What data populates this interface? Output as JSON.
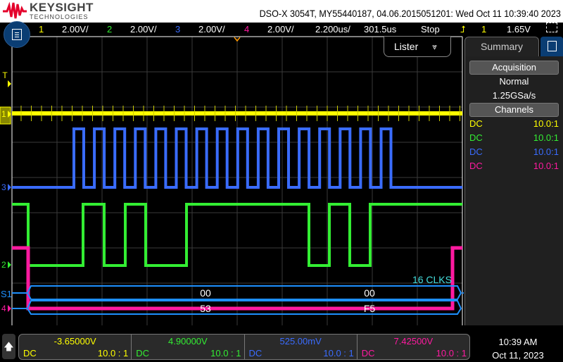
{
  "header": {
    "brand": "KEYSIGHT",
    "brand_sub": "TECHNOLOGIES",
    "title": "DSO-X 3054T, MY55440187, 04.06.2015051201: Wed Oct 11 10:39:40 2023"
  },
  "status": {
    "ch1": "1",
    "ch1_scale": "2.00V/",
    "ch2": "2",
    "ch2_scale": "2.00V/",
    "ch3": "3",
    "ch3_scale": "2.00V/",
    "ch4": "4",
    "ch4_scale": "2.00V/",
    "timebase": "2.200us/",
    "delay": "301.5us",
    "run_state": "Stop",
    "trigger_source": "1",
    "trigger_level": "1.65V"
  },
  "colors": {
    "ch1": "#ffff00",
    "ch2": "#33ee33",
    "ch3": "#3a6cff",
    "ch4": "#ff1aa0",
    "bus": "#1e90ff",
    "trigger": "#ff9900"
  },
  "plot": {
    "lister_label": "Lister",
    "bus_label": "S1",
    "clks_label": "16 CLKS",
    "mosi": [
      "00",
      "00"
    ],
    "miso": [
      "53",
      "F5"
    ],
    "ch_markers": [
      "1",
      "2",
      "3",
      "4"
    ],
    "trigger_marker": "T"
  },
  "sidebar": {
    "tab": "Summary",
    "acquisition_header": "Acquisition",
    "mode": "Normal",
    "sample_rate": "1.25GSa/s",
    "channels_header": "Channels",
    "channels": [
      {
        "coupling": "DC",
        "probe": "10.0:1"
      },
      {
        "coupling": "DC",
        "probe": "10.0:1"
      },
      {
        "coupling": "DC",
        "probe": "10.0:1"
      },
      {
        "coupling": "DC",
        "probe": "10.0:1"
      }
    ]
  },
  "bottom": {
    "offsets": [
      {
        "value": "-3.65000V",
        "coupling": "DC",
        "probe": "10.0 : 1"
      },
      {
        "value": "4.90000V",
        "coupling": "DC",
        "probe": "10.0 : 1"
      },
      {
        "value": "525.00mV",
        "coupling": "DC",
        "probe": "10.0 : 1"
      },
      {
        "value": "7.42500V",
        "coupling": "DC",
        "probe": "10.0 : 1"
      }
    ],
    "time": "10:39 AM",
    "date": "Oct 11, 2023"
  }
}
